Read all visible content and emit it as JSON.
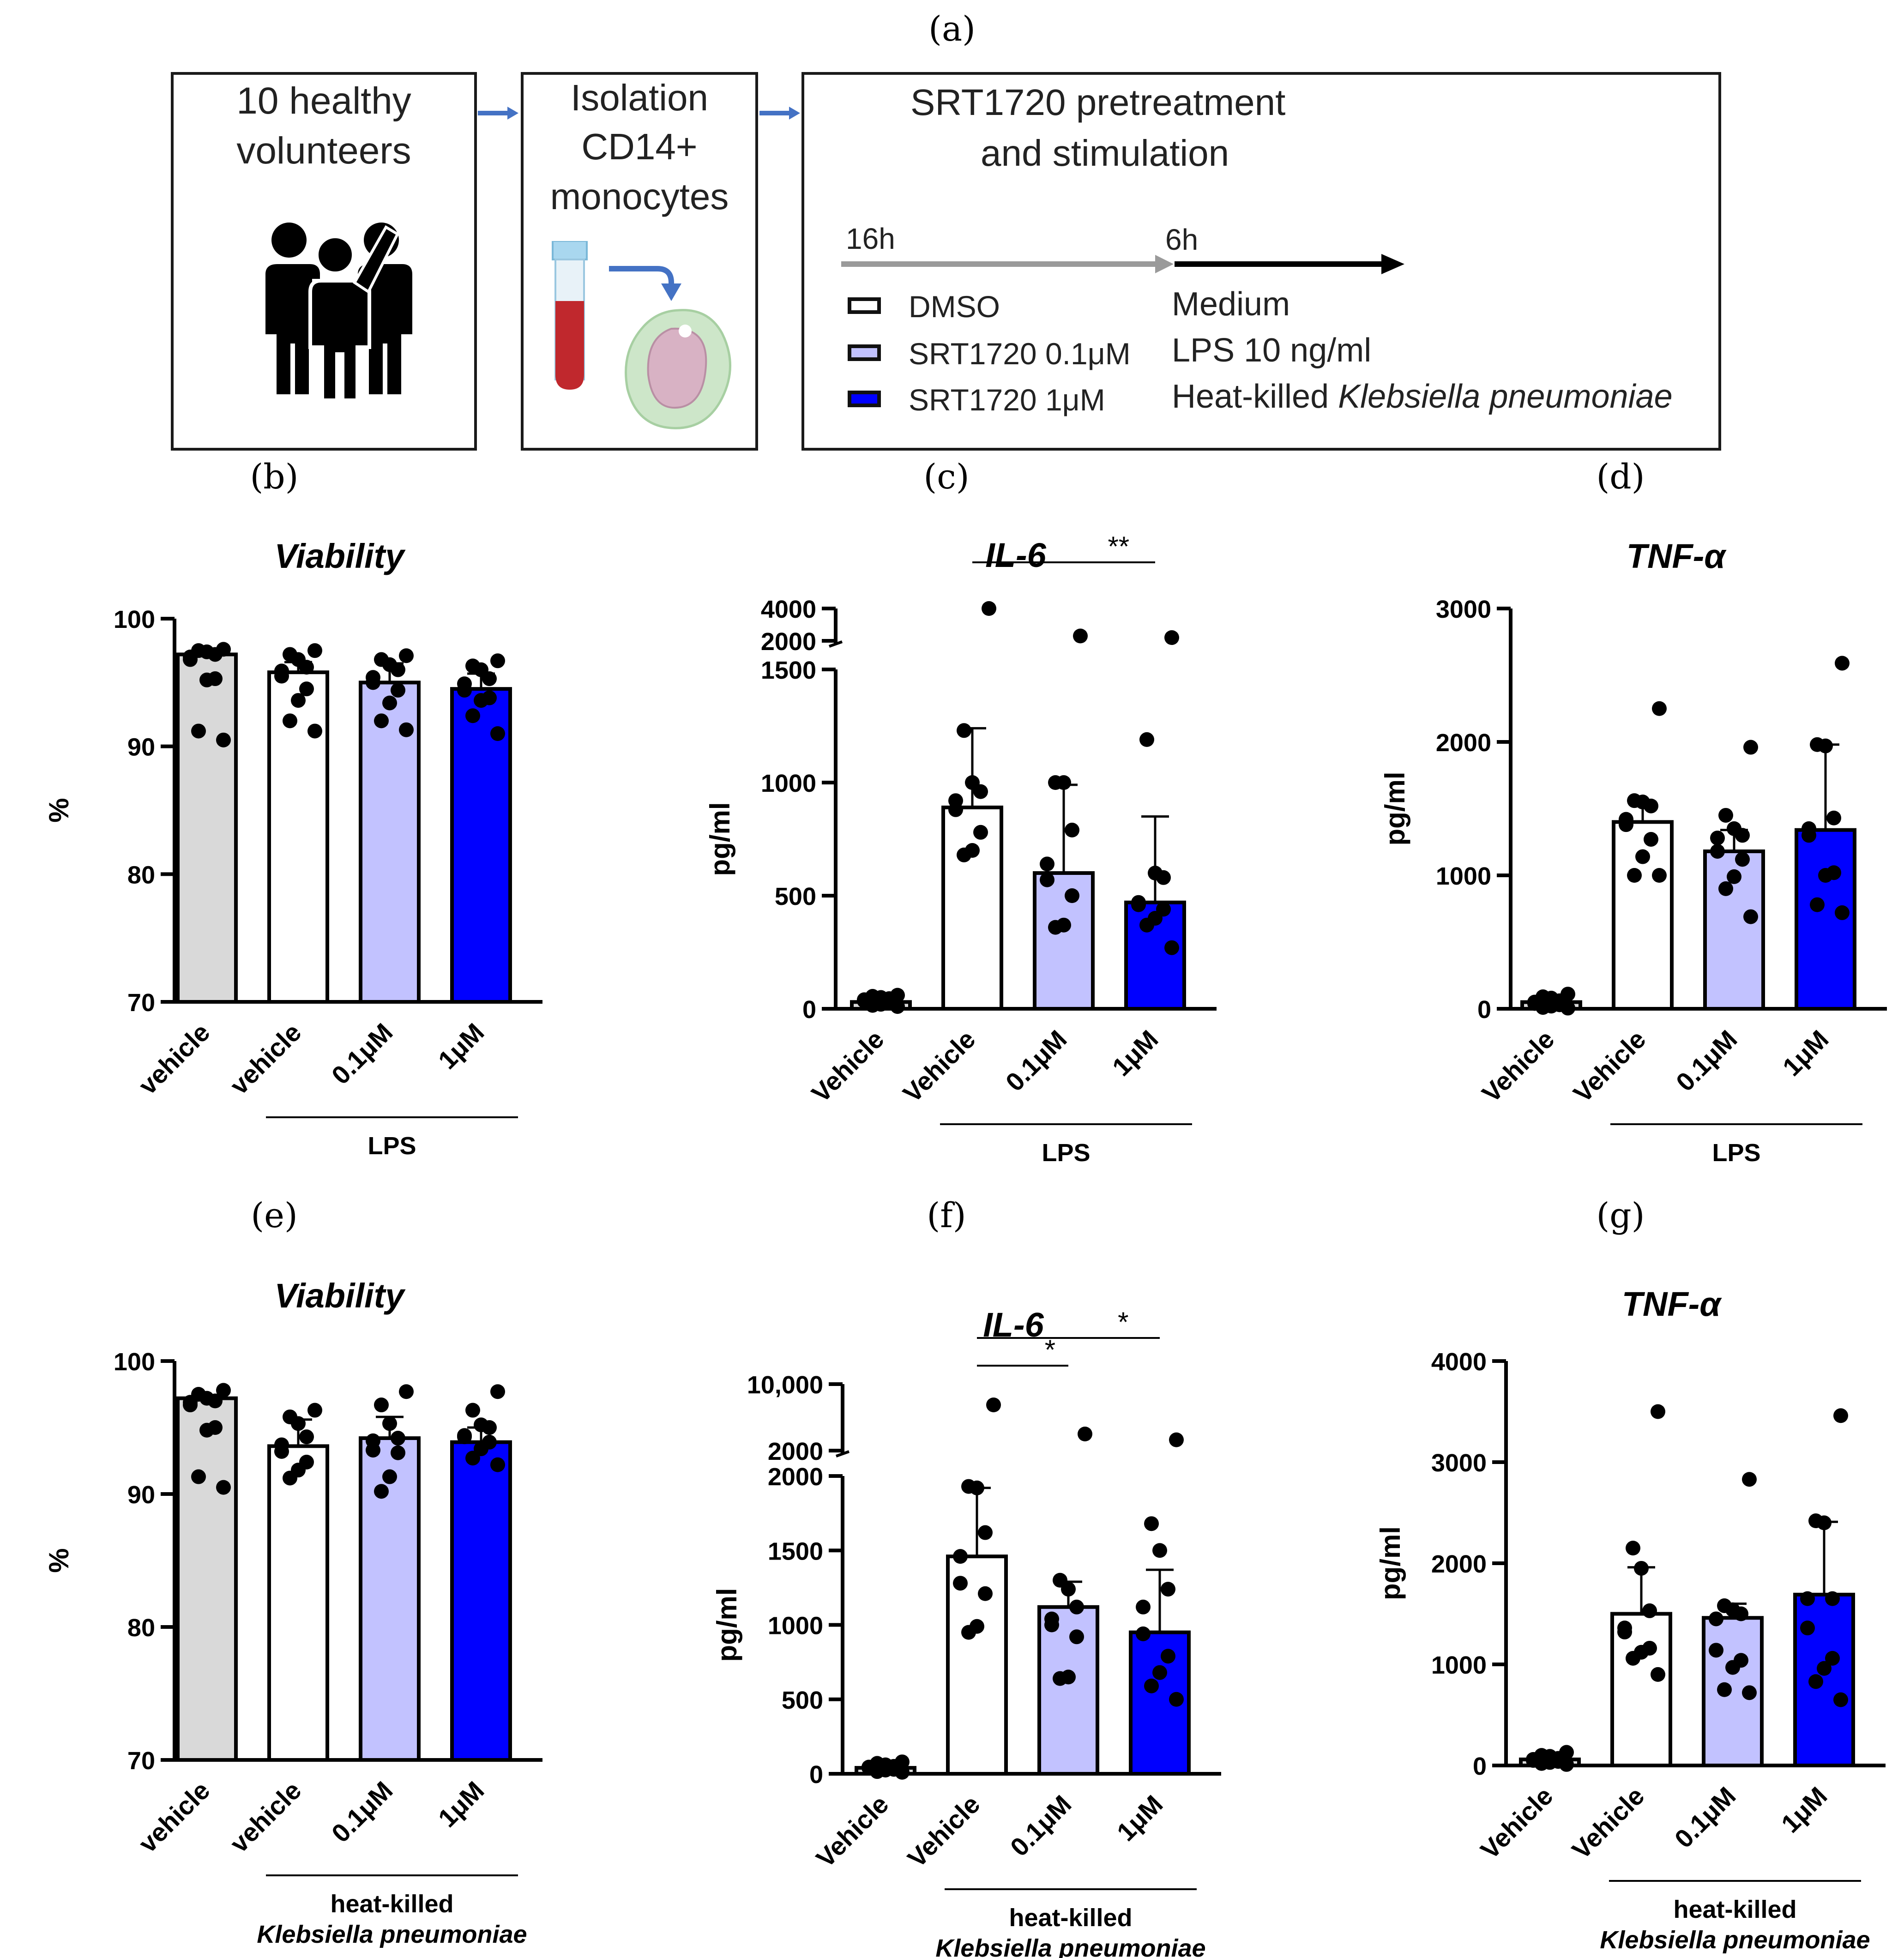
{
  "panels": {
    "a": "(a)",
    "b": "(b)",
    "c": "(c)",
    "d": "(d)",
    "e": "(e)",
    "f": "(f)",
    "g": "(g)"
  },
  "schematic": {
    "volunteers": [
      "10 healthy",
      "volunteers"
    ],
    "isolation": [
      "Isolation",
      "CD14+",
      "monocytes"
    ],
    "treatment_title": [
      "SRT1720 pretreatment",
      "and stimulation"
    ],
    "time1": "16h",
    "time2": "6h",
    "legend": [
      "DMSO",
      "SRT1720 0.1μM",
      "SRT1720 1μM"
    ],
    "stimuli": [
      "Medium",
      "LPS 10 ng/ml"
    ],
    "stimulus_hk_prefix": "Heat-killed ",
    "stimulus_hk_species": "Klebsiella pneumoniae",
    "colors": {
      "arrow_blue": "#4472c4",
      "gray_arrow": "#9a9a9a",
      "tube_red": "#c0282d",
      "cell_green": "#cde6c9",
      "nucleus_pink": "#d8b2c4"
    }
  },
  "colors": {
    "vehicle_unstim": "#d9d9d9",
    "dmso": "#ffffff",
    "srt_low": "#c2c2ff",
    "srt_high": "#0000ff",
    "axis": "#000000"
  },
  "chart_data": [
    {
      "panel": "b",
      "type": "bar",
      "title": "Viability",
      "ylabel": "%",
      "ylim": [
        70,
        100
      ],
      "yticks": [
        "70",
        "80",
        "90",
        "100"
      ],
      "categories": [
        "vehicle",
        "vehicle",
        "0.1μM",
        "1μM"
      ],
      "group_label": [
        "LPS"
      ],
      "values": [
        97.2,
        95.8,
        95.0,
        94.5
      ],
      "errors": [
        0,
        0.8,
        1.5,
        1.2
      ],
      "points": [
        [
          97.6,
          97.5,
          97.4,
          97.2,
          97.0,
          96.8,
          95.3,
          95.2,
          91.2,
          90.5
        ],
        [
          97.5,
          97.2,
          96.8,
          96.2,
          95.9,
          95.5,
          94.5,
          93.6,
          92.0,
          91.2
        ],
        [
          97.1,
          96.8,
          96.4,
          96.0,
          95.4,
          95.0,
          94.4,
          93.4,
          92.0,
          91.3
        ],
        [
          96.7,
          96.3,
          96.0,
          95.3,
          94.9,
          94.4,
          93.8,
          93.6,
          92.4,
          91.0
        ]
      ]
    },
    {
      "panel": "c",
      "type": "bar",
      "title": "IL-6",
      "ylabel": "pg/ml",
      "broken_axis": true,
      "ylim": [
        0,
        1500
      ],
      "yticks": [
        "0",
        "500",
        "1000",
        "1500"
      ],
      "break_ticks": [
        "2000",
        "4000"
      ],
      "categories": [
        "Vehicle",
        "Vehicle",
        "0.1μM",
        "1μM"
      ],
      "group_label": [
        "LPS"
      ],
      "values": [
        30,
        890,
        600,
        470
      ],
      "errors": [
        0,
        350,
        390,
        380
      ],
      "points": [
        [
          60,
          55,
          50,
          45,
          40,
          35,
          30,
          20,
          15,
          10
        ],
        [
          4000,
          1230,
          1000,
          960,
          920,
          880,
          780,
          700,
          680
        ],
        [
          2300,
          1000,
          1000,
          790,
          640,
          570,
          500,
          370,
          360
        ],
        [
          2200,
          1190,
          600,
          580,
          470,
          460,
          440,
          400,
          370,
          270
        ]
      ],
      "significance": [
        {
          "from": 1,
          "to": 3,
          "label": "**"
        }
      ]
    },
    {
      "panel": "d",
      "type": "bar",
      "title": "TNF-α",
      "ylabel": "pg/ml",
      "ylim": [
        0,
        3000
      ],
      "yticks": [
        "0",
        "1000",
        "2000",
        "3000"
      ],
      "categories": [
        "Vehicle",
        "Vehicle",
        "0.1μM",
        "1μM"
      ],
      "group_label": [
        "LPS"
      ],
      "values": [
        50,
        1400,
        1180,
        1340
      ],
      "errors": [
        0,
        150,
        160,
        640
      ],
      "points": [
        [
          110,
          90,
          80,
          60,
          50,
          40,
          30,
          20,
          10,
          5
        ],
        [
          2250,
          1560,
          1550,
          1520,
          1420,
          1380,
          1270,
          1140,
          1000,
          1000
        ],
        [
          1960,
          1450,
          1350,
          1300,
          1280,
          1180,
          1120,
          990,
          900,
          690
        ],
        [
          2590,
          1980,
          1970,
          1430,
          1350,
          1300,
          1020,
          1000,
          780,
          720
        ]
      ]
    },
    {
      "panel": "e",
      "type": "bar",
      "title": "Viability",
      "ylabel": "%",
      "ylim": [
        70,
        100
      ],
      "yticks": [
        "70",
        "80",
        "90",
        "100"
      ],
      "categories": [
        "vehicle",
        "vehicle",
        "0.1μM",
        "1μM"
      ],
      "group_label": [
        "heat-killed",
        "Klebsiella pneumoniae"
      ],
      "values": [
        97.2,
        93.6,
        94.2,
        93.9
      ],
      "errors": [
        0,
        2.0,
        1.6,
        1.1
      ],
      "points": [
        [
          97.8,
          97.5,
          97.2,
          97.0,
          96.9,
          96.7,
          95.0,
          94.8,
          91.3,
          90.5
        ],
        [
          96.3,
          95.8,
          95.3,
          94.3,
          93.7,
          93.2,
          92.4,
          91.8,
          91.2
        ],
        [
          97.7,
          96.7,
          95.3,
          94.2,
          94.0,
          93.3,
          93.1,
          91.3,
          90.2
        ],
        [
          97.7,
          96.3,
          95.2,
          95.0,
          94.4,
          94.3,
          93.9,
          93.4,
          92.7,
          92.2
        ]
      ]
    },
    {
      "panel": "f",
      "type": "bar",
      "title": "IL-6",
      "ylabel": "pg/ml",
      "broken_axis": true,
      "ylim": [
        0,
        2000
      ],
      "yticks": [
        "0",
        "500",
        "1000",
        "1500",
        "2000"
      ],
      "break_ticks": [
        "2000",
        "10,000"
      ],
      "categories": [
        "Vehicle",
        "Vehicle",
        "0.1μM",
        "1μM"
      ],
      "group_label": [
        "heat-killed",
        "Klebsiella pneumoniae"
      ],
      "values": [
        40,
        1460,
        1120,
        950
      ],
      "errors": [
        0,
        460,
        170,
        420
      ],
      "points": [
        [
          80,
          70,
          60,
          50,
          45,
          40,
          30,
          25,
          15,
          10
        ],
        [
          7500,
          1930,
          1920,
          1620,
          1460,
          1280,
          1210,
          990,
          950
        ],
        [
          4000,
          1300,
          1240,
          1120,
          1040,
          1000,
          920,
          650,
          640
        ],
        [
          3300,
          1680,
          1500,
          1240,
          1120,
          940,
          790,
          680,
          590,
          500
        ]
      ],
      "significance": [
        {
          "from": 1,
          "to": 2,
          "label": "*"
        },
        {
          "from": 1,
          "to": 3,
          "label": "*"
        }
      ]
    },
    {
      "panel": "g",
      "type": "bar",
      "title": "TNF-α",
      "ylabel": "pg/ml",
      "ylim": [
        0,
        4000
      ],
      "yticks": [
        "0",
        "1000",
        "2000",
        "3000",
        "4000"
      ],
      "categories": [
        "Vehicle",
        "Vehicle",
        "0.1μM",
        "1μM"
      ],
      "group_label": [
        "heat-killed",
        "Klebsiella pneumoniae"
      ],
      "values": [
        60,
        1500,
        1460,
        1690
      ],
      "errors": [
        0,
        460,
        140,
        720
      ],
      "points": [
        [
          130,
          100,
          90,
          70,
          60,
          50,
          40,
          30,
          20,
          10
        ],
        [
          3500,
          2150,
          1950,
          1530,
          1360,
          1320,
          1160,
          1120,
          1060,
          900
        ],
        [
          2830,
          1580,
          1540,
          1500,
          1450,
          1140,
          1040,
          970,
          750,
          720
        ],
        [
          3460,
          2420,
          2400,
          1650,
          1650,
          1360,
          1060,
          960,
          830,
          650
        ]
      ]
    }
  ]
}
